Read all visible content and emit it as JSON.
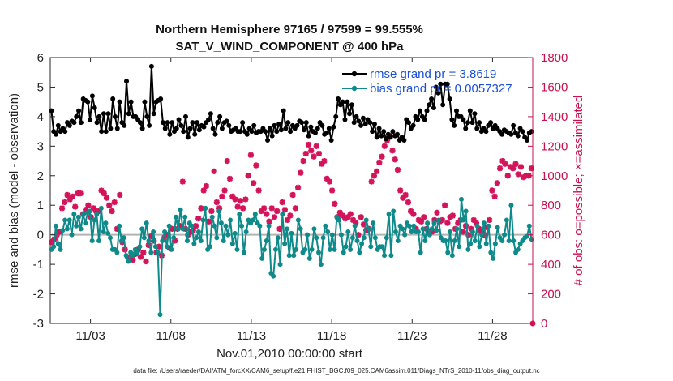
{
  "chart_data": {
    "type": "line",
    "title": "Northern Hemisphere 97165 / 97599 = 99.555%",
    "subtitle": "SAT_V_WIND_COMPONENT @ 400 hPa",
    "xlabel": "Nov.01,2010 00:00:00 start",
    "ylabel": "rmse and bias (model - observation)",
    "y2label": "# of obs: o=possible; ×=assimilated",
    "xlim": [
      0.5,
      30.5
    ],
    "ylim": [
      -3,
      6
    ],
    "y2lim": [
      0,
      1800
    ],
    "xticks": [
      3,
      8,
      13,
      18,
      23,
      28
    ],
    "xtick_labels": [
      "11/03",
      "11/08",
      "11/13",
      "11/18",
      "11/23",
      "11/28"
    ],
    "yticks": [
      -3,
      -2,
      -1,
      0,
      1,
      2,
      3,
      4,
      5,
      6
    ],
    "y2ticks": [
      0,
      200,
      400,
      600,
      800,
      1000,
      1200,
      1400,
      1600,
      1800
    ],
    "legend_position": "top-right",
    "footer": "data file: /Users/raeder/DAI/ATM_forcXX/CAM6_setup/f.e21.FHIST_BGC.f09_025.CAM6assim.011/Diags_NTrS_2010-11/obs_diag_output.nc",
    "colors": {
      "rmse": "#000000",
      "bias": "#0f8a8a",
      "obs": "#d4145a",
      "zero": "#b3b3b3"
    },
    "series": [
      {
        "name": "rmse grand pr = 3.8619",
        "axis": "left",
        "values": [
          4.2,
          3.5,
          3.4,
          3.7,
          3.5,
          3.6,
          3.5,
          3.8,
          3.7,
          3.85,
          3.8,
          4.0,
          4.2,
          3.8,
          4.6,
          4.55,
          4.5,
          3.9,
          4.7,
          4.3,
          3.8,
          4.0,
          3.5,
          4.1,
          3.5,
          4.1,
          3.6,
          4.6,
          4.0,
          3.6,
          4.5,
          3.8,
          3.7,
          5.2,
          4.1,
          4.5,
          4.0,
          4.0,
          3.9,
          3.8,
          3.6,
          4.5,
          4.0,
          3.7,
          5.7,
          4.1,
          4.5,
          4.55,
          4.6,
          3.8,
          3.6,
          3.8,
          3.4,
          3.8,
          3.5,
          3.6,
          3.9,
          3.7,
          3.5,
          4.0,
          3.3,
          3.6,
          3.8,
          3.4,
          3.8,
          3.55,
          3.7,
          3.65,
          3.8,
          3.9,
          4.1,
          3.6,
          3.4,
          3.8,
          4.0,
          3.6,
          3.8,
          3.85,
          3.7,
          3.5,
          3.55,
          3.6,
          3.5,
          3.5,
          3.8,
          3.5,
          3.4,
          3.6,
          3.5,
          3.7,
          3.45,
          3.5,
          3.5,
          3.6,
          3.5,
          3.2,
          3.6,
          3.35,
          3.7,
          3.5,
          3.75,
          3.55,
          4.2,
          3.6,
          3.8,
          3.5,
          3.7,
          3.6,
          3.7,
          3.85,
          3.8,
          3.55,
          3.8,
          3.35,
          3.65,
          3.5,
          3.45,
          3.6,
          3.8,
          3.7,
          3.4,
          3.45,
          3.6,
          3.2,
          3.65,
          4.0,
          4.6,
          4.4,
          4.5,
          3.9,
          4.5,
          4.1,
          4.4,
          3.8,
          4.0,
          3.85,
          3.7,
          3.95,
          3.75,
          3.9,
          3.8,
          3.5,
          3.75,
          3.3,
          3.6,
          3.35,
          3.5,
          3.25,
          3.4,
          3.3,
          3.5,
          3.35,
          3.4,
          3.2,
          3.3,
          3.2,
          3.9,
          3.8,
          3.6,
          3.7,
          4.0,
          3.9,
          4.2,
          4.0,
          3.9,
          4.2,
          4.4,
          4.6,
          4.3,
          5.0,
          4.8,
          5.1,
          4.4,
          5.1,
          5.1,
          4.6,
          3.9,
          3.7,
          4.2,
          4.0,
          4.0,
          3.9,
          3.6,
          3.8,
          4.2,
          3.8,
          4.1,
          3.6,
          3.8,
          3.5,
          3.6,
          3.5,
          3.7,
          3.8,
          3.6,
          3.7,
          3.6,
          3.5,
          3.4,
          3.55,
          3.5,
          3.45,
          3.4,
          3.7,
          3.45,
          3.35,
          3.6,
          3.5,
          3.3,
          3.2,
          3.45,
          3.5
        ]
      },
      {
        "name": "bias grand pr = 0.0057327",
        "axis": "left",
        "values": [
          -0.5,
          -0.4,
          0.3,
          -0.3,
          -0.5,
          0.15,
          0.5,
          0.2,
          0.5,
          0.0,
          0.7,
          0.3,
          0.6,
          0.2,
          0.7,
          0.4,
          0.75,
          0.8,
          -0.2,
          0.5,
          0.7,
          -0.2,
          0.9,
          0.1,
          0.4,
          0.05,
          -0.1,
          -0.5,
          -0.5,
          -0.6,
          0.3,
          -0.2,
          -0.1,
          -0.7,
          -0.9,
          -0.6,
          -0.7,
          -0.5,
          -0.6,
          -0.4,
          0.2,
          -0.1,
          0.4,
          -0.2,
          -0.6,
          0.1,
          -0.4,
          -0.6,
          -2.7,
          -0.2,
          0.1,
          -0.4,
          0.3,
          -0.5,
          -0.1,
          0.6,
          0.2,
          0.85,
          0.2,
          0.6,
          -0.2,
          0.4,
          0.3,
          -0.3,
          -0.1,
          0.1,
          -0.2,
          0.5,
          0.9,
          -0.5,
          -0.4,
          0.6,
          0.3,
          -0.1,
          0.8,
          0.4,
          -0.2,
          0.3,
          0.0,
          0.5,
          -0.3,
          0.05,
          -0.5,
          0.7,
          0.3,
          -0.6,
          0.1,
          0.5,
          0.4,
          0.5,
          0.7,
          0.4,
          0.3,
          -0.8,
          -0.5,
          -0.2,
          0.3,
          -1.3,
          -1.4,
          -0.5,
          -0.1,
          -1.0,
          0.7,
          -0.3,
          0.2,
          -0.7,
          0.05,
          -0.7,
          -0.5,
          0.5,
          0.2,
          -0.6,
          -0.5,
          0.0,
          -0.8,
          -0.5,
          0.2,
          -0.1,
          -0.6,
          -1.0,
          -0.1,
          0.3,
          0.1,
          -0.5,
          0.0,
          -0.5,
          0.6,
          0.5,
          0.0,
          -0.6,
          -0.4,
          0.1,
          -0.5,
          -0.1,
          0.3,
          -0.2,
          -0.6,
          -0.3,
          -0.1,
          0.5,
          0.2,
          -0.4,
          0.4,
          -0.1,
          -0.5,
          -0.4,
          -0.4,
          -0.7,
          -0.1,
          0.7,
          -0.7,
          0.8,
          0.1,
          -0.2,
          0.3,
          0.2,
          0.0,
          0.4,
          0.3,
          0.1,
          0.3,
          0.1,
          0.1,
          -0.6,
          0.2,
          -0.2,
          0.4,
          0.0,
          0.2,
          0.4,
          0.15,
          0.5,
          -0.1,
          -0.2,
          -0.2,
          -0.6,
          0.1,
          -0.7,
          -0.2,
          0.2,
          -0.4,
          1.2,
          0.5,
          0.8,
          -0.5,
          -0.3,
          0.1,
          -0.2,
          0.3,
          -0.4,
          0.0,
          0.4,
          -0.3,
          0.3,
          -0.6,
          -0.8,
          -0.3,
          0.25,
          -0.1,
          -0.2,
          0.0,
          0.5,
          -0.2,
          1.0,
          -0.2,
          -0.6,
          -0.5,
          -0.3,
          -0.2,
          -0.1,
          -0.05,
          0.3,
          -0.15
        ]
      },
      {
        "name": "obs assimilated",
        "axis": "right",
        "marker": "asterisk",
        "values": [
          550,
          570,
          600,
          620,
          780,
          820,
          870,
          840,
          860,
          790,
          880,
          880,
          740,
          770,
          800,
          720,
          780,
          760,
          760,
          900,
          880,
          850,
          800,
          760,
          820,
          640,
          870,
          550,
          500,
          450,
          440,
          430,
          470,
          500,
          450,
          480,
          420,
          530,
          590,
          560,
          480,
          520,
          460,
          580,
          600,
          510,
          640,
          560,
          640,
          660,
          960,
          640,
          600,
          620,
          630,
          660,
          710,
          780,
          900,
          930,
          690,
          760,
          1030,
          820,
          780,
          860,
          900,
          1100,
          980,
          860,
          840,
          790,
          830,
          780,
          840,
          1000,
          1140,
          950,
          1070,
          900,
          760,
          780,
          740,
          690,
          780,
          720,
          760,
          640,
          820,
          770,
          700,
          730,
          870,
          780,
          920,
          1020,
          1100,
          1150,
          1210,
          1170,
          1130,
          1200,
          1150,
          1080,
          1100,
          980,
          960,
          900,
          810,
          720,
          750,
          730,
          710,
          720,
          740,
          700,
          680,
          600,
          720,
          670,
          630,
          640,
          960,
          1000,
          1030,
          1090,
          1130,
          1200,
          1240,
          1270,
          1170,
          1110,
          1040,
          900,
          850,
          870,
          820,
          760,
          740,
          640,
          700,
          690,
          720,
          640,
          620,
          620,
          700,
          750,
          690,
          700,
          800,
          680,
          720,
          730,
          640,
          680,
          700,
          620,
          660,
          600,
          640,
          700,
          680,
          640,
          620,
          600,
          650,
          700,
          900,
          860,
          950,
          1050,
          1100,
          1080,
          1000,
          1060,
          1050,
          1080,
          1010,
          1060,
          990,
          1000,
          1000,
          1050
        ]
      },
      {
        "name": "obs possible",
        "axis": "right",
        "marker": "circle",
        "values": [
          0
        ],
        "note": "single visible marker at last day"
      }
    ]
  }
}
